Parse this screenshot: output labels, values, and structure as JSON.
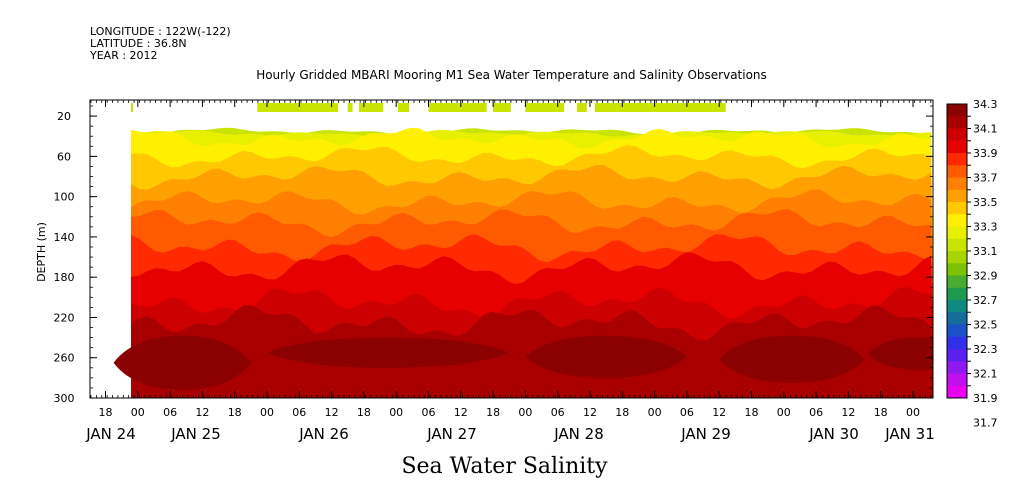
{
  "header": {
    "longitude": "LONGITUDE : 122W(-122)",
    "latitude": "LATITUDE : 36.8N",
    "year": "YEAR : 2012"
  },
  "footer_label": "Sea Water Salinity",
  "chart_data": {
    "type": "heatmap",
    "title": "Hourly Gridded MBARI Mooring M1 Sea Water Temperature and Salinity Observations",
    "xlabel": "",
    "ylabel": "DEPTH (m)",
    "y_reversed": true,
    "ylim": [
      300,
      4
    ],
    "y_ticks": [
      20,
      60,
      100,
      140,
      180,
      220,
      260,
      300
    ],
    "x_hour_ticks": [
      "18",
      "00",
      "06",
      "12",
      "18",
      "00",
      "06",
      "12",
      "18",
      "00",
      "06",
      "12",
      "18",
      "00",
      "06",
      "12",
      "18",
      "00",
      "06",
      "12",
      "18",
      "00",
      "06",
      "12",
      "18",
      "00"
    ],
    "x_day_labels": [
      "JAN 24",
      "JAN 25",
      "JAN 26",
      "JAN 27",
      "JAN 28",
      "JAN 29",
      "JAN 30",
      "JAN 31"
    ],
    "colorbar": {
      "levels": [
        "34.3",
        "34.1",
        "33.9",
        "33.7",
        "33.5",
        "33.3",
        "33.1",
        "32.9",
        "32.7",
        "32.5",
        "32.3",
        "32.1",
        "31.9",
        "31.7"
      ],
      "colors": [
        "#8b0000",
        "#a80000",
        "#cc0000",
        "#e60000",
        "#ff2a00",
        "#ff5a00",
        "#ff7f00",
        "#ffa000",
        "#ffc800",
        "#fff000",
        "#e8f000",
        "#c8e400",
        "#a8d400",
        "#7cc200",
        "#48ac30",
        "#1e9a50",
        "#0e8a80",
        "#146c9a",
        "#1a50c8",
        "#3030e8",
        "#5a20f0",
        "#9018f0",
        "#c010f0",
        "#e800f0"
      ]
    },
    "bands": [
      {
        "level": "top surface (~33.0)",
        "color": "#c8e400",
        "depth_top": 35,
        "depth_bottom": 37
      },
      {
        "level": "33.2",
        "color": "#e8f000",
        "depth_top": 37,
        "depth_bottom": 42
      },
      {
        "level": "33.3",
        "color": "#fff000",
        "depth_top": 42,
        "depth_bottom": 60
      },
      {
        "level": "33.5",
        "color": "#ffc800",
        "depth_top": 60,
        "depth_bottom": 80
      },
      {
        "level": "33.6",
        "color": "#ffa000",
        "depth_top": 80,
        "depth_bottom": 105
      },
      {
        "level": "33.7",
        "color": "#ff7f00",
        "depth_top": 105,
        "depth_bottom": 125
      },
      {
        "level": "33.8",
        "color": "#ff5a00",
        "depth_top": 125,
        "depth_bottom": 150
      },
      {
        "level": "33.9",
        "color": "#ff2a00",
        "depth_top": 150,
        "depth_bottom": 170
      },
      {
        "level": "34.0",
        "color": "#e60000",
        "depth_top": 170,
        "depth_bottom": 205
      },
      {
        "level": "34.1",
        "color": "#cc0000",
        "depth_top": 205,
        "depth_bottom": 225
      },
      {
        "level": "34.2",
        "color": "#a80000",
        "depth_top": 225,
        "depth_bottom": 300
      }
    ],
    "deep_patches": [
      {
        "t_start": 0.25,
        "t_end": 4.5,
        "depth_top": 238,
        "depth_bottom": 292
      },
      {
        "t_start": 5.0,
        "t_end": 12.5,
        "depth_top": 240,
        "depth_bottom": 270
      },
      {
        "t_start": 13.0,
        "t_end": 18.0,
        "depth_top": 238,
        "depth_bottom": 280
      },
      {
        "t_start": 19.0,
        "t_end": 23.5,
        "depth_top": 238,
        "depth_bottom": 285
      },
      {
        "t_start": 23.6,
        "t_end": 26.8,
        "depth_top": 240,
        "depth_bottom": 272
      }
    ],
    "surface_segments": [
      {
        "t_start": 0.0,
        "t_end": 0.7
      },
      {
        "t_start": 4.7,
        "t_end": 7.2
      },
      {
        "t_start": 7.5,
        "t_end": 7.65
      },
      {
        "t_start": 7.85,
        "t_end": 8.6
      },
      {
        "t_start": 9.05,
        "t_end": 9.4
      },
      {
        "t_start": 10.0,
        "t_end": 11.8
      },
      {
        "t_start": 12.0,
        "t_end": 12.55
      },
      {
        "t_start": 13.0,
        "t_end": 14.2
      },
      {
        "t_start": 14.6,
        "t_end": 14.9
      },
      {
        "t_start": 15.15,
        "t_end": 19.2
      }
    ]
  }
}
